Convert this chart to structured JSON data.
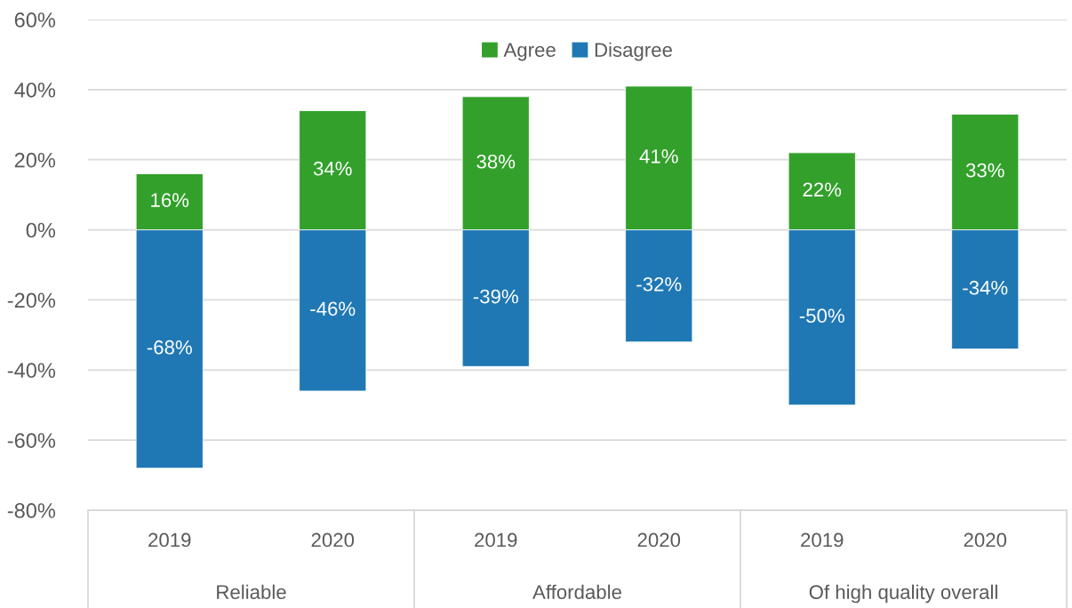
{
  "chart_data": {
    "type": "bar",
    "stacked": true,
    "categories": [
      "2019",
      "2020",
      "2019",
      "2020",
      "2019",
      "2020"
    ],
    "annotations": [
      "Reliable",
      "Affordable",
      "Of high quality overall"
    ],
    "series": [
      {
        "name": "Agree",
        "color": "#33a02c",
        "values": [
          16,
          34,
          38,
          41,
          22,
          33
        ],
        "value_labels": [
          "16%",
          "34%",
          "38%",
          "41%",
          "22%",
          "33%"
        ]
      },
      {
        "name": "Disagree",
        "color": "#1f78b4",
        "values": [
          -68,
          -46,
          -39,
          -32,
          -50,
          -34
        ],
        "value_labels": [
          "-68%",
          "-46%",
          "-39%",
          "-32%",
          "-50%",
          "-34%"
        ]
      }
    ],
    "ylim": [
      -80,
      60
    ],
    "yticks": [
      {
        "value": 60,
        "label": "60%"
      },
      {
        "value": 40,
        "label": "40%"
      },
      {
        "value": 20,
        "label": "20%"
      },
      {
        "value": 0,
        "label": "0%"
      },
      {
        "value": -20,
        "label": "-20%"
      },
      {
        "value": -40,
        "label": "-40%"
      },
      {
        "value": -60,
        "label": "-60%"
      },
      {
        "value": -80,
        "label": "-80%"
      }
    ],
    "grid": "y",
    "legend": "top"
  }
}
